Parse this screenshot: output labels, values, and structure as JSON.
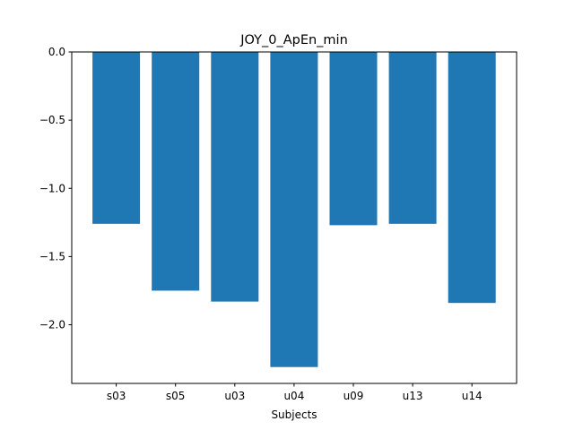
{
  "chart_data": {
    "type": "bar",
    "title": "JOY_0_ApEn_min",
    "xlabel": "Subjects",
    "ylabel": "",
    "categories": [
      "s03",
      "s05",
      "u03",
      "u04",
      "u09",
      "u13",
      "u14"
    ],
    "values": [
      -1.26,
      -1.75,
      -1.83,
      -2.31,
      -1.27,
      -1.26,
      -1.84
    ],
    "ylim": [
      -2.43,
      0.0
    ],
    "yticks": [
      0.0,
      -0.5,
      -1.0,
      -1.5,
      -2.0
    ],
    "ytick_labels": [
      "0.0",
      "−0.5",
      "−1.0",
      "−1.5",
      "−2.0"
    ],
    "bar_color": "#1f77b4",
    "grid": false,
    "legend": "none"
  }
}
